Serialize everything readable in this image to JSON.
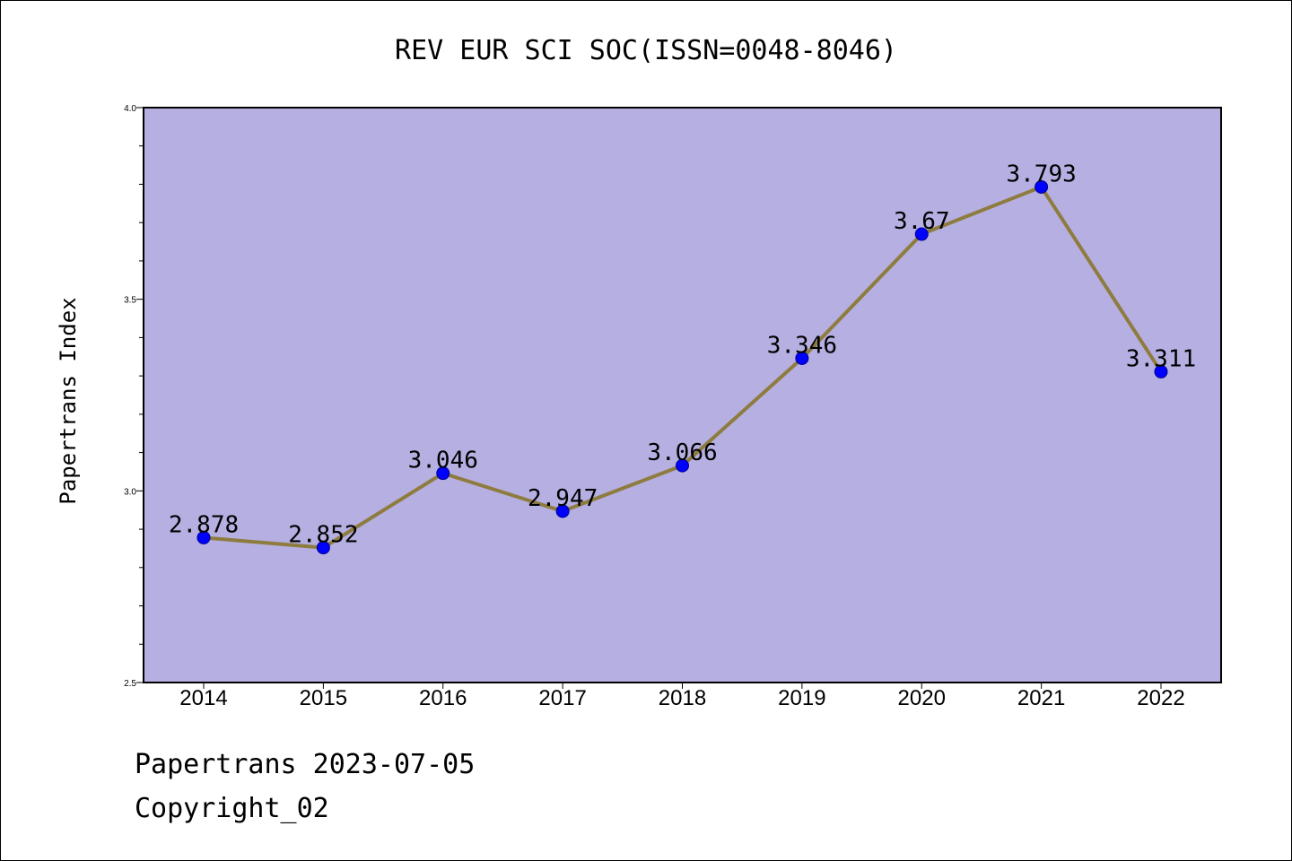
{
  "footer": {
    "line1": "Papertrans 2023-07-05",
    "line2": "Copyright_02"
  },
  "chart_data": {
    "type": "line",
    "title": "REV EUR SCI SOC(ISSN=0048-8046)",
    "xlabel": "",
    "ylabel": "Papertrans Index",
    "categories": [
      "2014",
      "2015",
      "2016",
      "2017",
      "2018",
      "2019",
      "2020",
      "2021",
      "2022"
    ],
    "series": [
      {
        "values": [
          2.878,
          2.852,
          3.046,
          2.947,
          3.066,
          3.346,
          3.67,
          3.793,
          3.311
        ],
        "labels": [
          "2.878",
          "2.852",
          "3.046",
          "2.947",
          "3.066",
          "3.346",
          "3.67",
          "3.793",
          "3.311"
        ]
      }
    ],
    "ylim": [
      2.5,
      4.0
    ],
    "yticks": [
      "2.5",
      "3.0",
      "3.5",
      "4.0"
    ],
    "yticks_values": [
      2.5,
      3.0,
      3.5,
      4.0
    ],
    "y_minor_step": 0.1,
    "grid": false,
    "colors": {
      "plot_background": "#b5afe2",
      "line": "#8e7c3e",
      "marker": "#0000ff",
      "marker_edge": "#00008b"
    }
  }
}
